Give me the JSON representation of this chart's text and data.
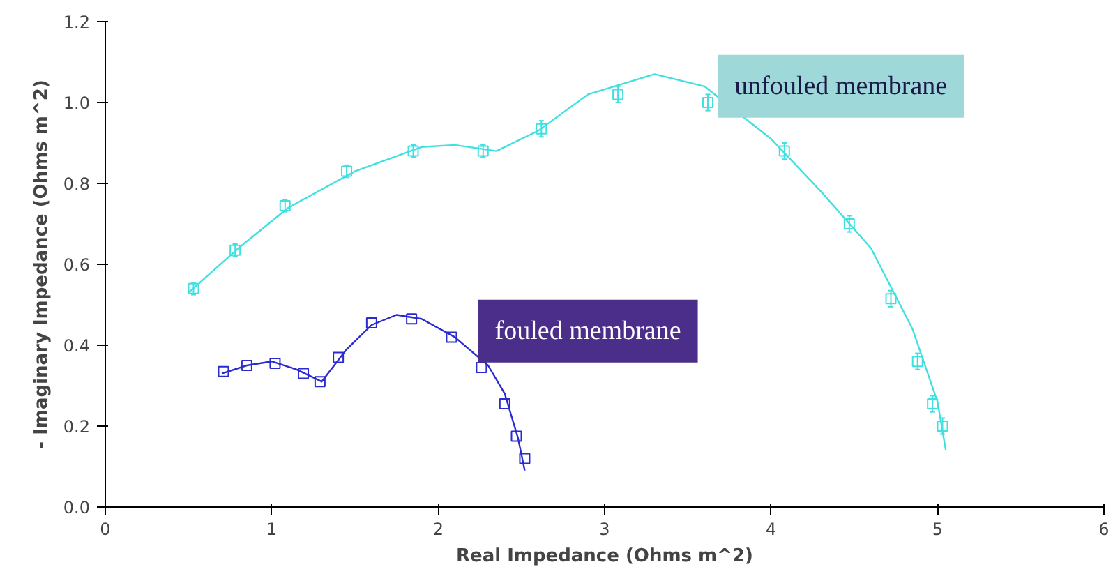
{
  "chart_data": {
    "type": "scatter",
    "xlabel": "Real Impedance (Ohms m^2)",
    "ylabel": "- Imaginary Impedance (Ohms m^2)",
    "xlim": [
      0,
      6
    ],
    "ylim": [
      0,
      1.2
    ],
    "xticks": [
      0,
      1,
      2,
      3,
      4,
      5,
      6
    ],
    "yticks": [
      {
        "value": 0,
        "label": "0.0"
      },
      0.2,
      0.4,
      0.6,
      0.8,
      {
        "value": 1,
        "label": "1.0"
      },
      1.2
    ],
    "grid": false,
    "marker": "square",
    "series": [
      {
        "name": "unfouled membrane",
        "color": "#40e0e0",
        "x": [
          0.53,
          0.78,
          1.08,
          1.45,
          1.85,
          2.27,
          2.62,
          3.08,
          3.62,
          4.08,
          4.47,
          4.72,
          4.88,
          4.97,
          5.03
        ],
        "values": [
          0.54,
          0.635,
          0.745,
          0.83,
          0.88,
          0.88,
          0.935,
          1.02,
          1.0,
          0.88,
          0.7,
          0.515,
          0.36,
          0.255,
          0.2
        ],
        "errors": [
          0.015,
          0.015,
          0.015,
          0.015,
          0.015,
          0.015,
          0.02,
          0.02,
          0.02,
          0.02,
          0.02,
          0.02,
          0.02,
          0.02,
          0.02
        ]
      },
      {
        "name": "fouled membrane",
        "color": "#2a2ad0",
        "x": [
          0.71,
          0.85,
          1.02,
          1.19,
          1.29,
          1.4,
          1.6,
          1.84,
          2.08,
          2.26,
          2.4,
          2.47,
          2.52
        ],
        "values": [
          0.335,
          0.35,
          0.355,
          0.33,
          0.31,
          0.37,
          0.455,
          0.465,
          0.42,
          0.345,
          0.255,
          0.175,
          0.12
        ]
      },
      {
        "type": "line",
        "marker": "none",
        "color": "#40e0e0",
        "x": [
          0.5,
          0.8,
          1.1,
          1.5,
          1.9,
          2.1,
          2.35,
          2.6,
          2.9,
          3.3,
          3.6,
          4.0,
          4.3,
          4.6,
          4.85,
          5.0,
          5.05
        ],
        "values": [
          0.53,
          0.64,
          0.74,
          0.83,
          0.89,
          0.895,
          0.88,
          0.93,
          1.02,
          1.07,
          1.04,
          0.91,
          0.78,
          0.64,
          0.44,
          0.26,
          0.14
        ]
      },
      {
        "type": "line",
        "marker": "none",
        "color": "#2a2ad0",
        "x": [
          0.7,
          0.85,
          1.0,
          1.15,
          1.3,
          1.45,
          1.6,
          1.75,
          1.9,
          2.1,
          2.3,
          2.4,
          2.48,
          2.52
        ],
        "values": [
          0.33,
          0.35,
          0.36,
          0.34,
          0.31,
          0.39,
          0.45,
          0.475,
          0.465,
          0.42,
          0.35,
          0.28,
          0.17,
          0.09
        ]
      }
    ]
  }
}
